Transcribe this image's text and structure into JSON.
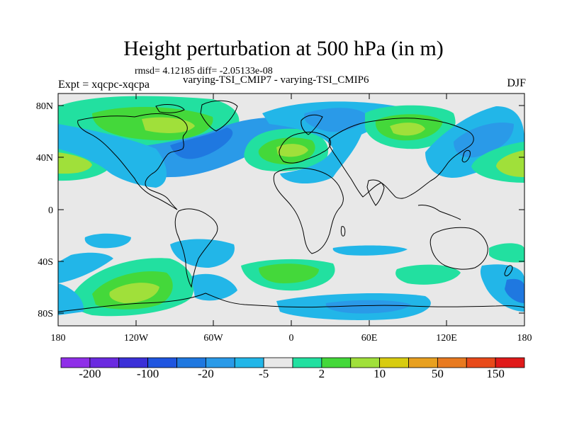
{
  "title": "Height perturbation at 500 hPa (in m)",
  "stats": "rmsd= 4.12185 diff= -2.05133e-08",
  "subtitle": "varying-TSI_CMIP7 - varying-TSI_CMIP6",
  "experiment": "Expt = xqcpc-xqcpa",
  "season": "DJF",
  "map": {
    "projection": "cylindrical equidistant",
    "lon_range": [
      -180,
      180
    ],
    "lat_range": [
      -90,
      90
    ],
    "lat_ticks": [
      "80N",
      "40N",
      "0",
      "40S",
      "80S"
    ],
    "lon_ticks": [
      "180",
      "120W",
      "60W",
      "0",
      "60E",
      "120E",
      "180"
    ]
  },
  "colorbar": {
    "colors": [
      "#8f2fe8",
      "#6a2ae0",
      "#3b30d8",
      "#1f55e0",
      "#1f78e0",
      "#2a9ae8",
      "#22b6e8",
      "#e8e8e8",
      "#22e0a0",
      "#44d83a",
      "#a0e03a",
      "#d8cc10",
      "#e8a020",
      "#e87a20",
      "#e84a1a",
      "#e01a1a"
    ],
    "labels": [
      "-200",
      "-100",
      "-20",
      "-5",
      "2",
      "10",
      "50",
      "150"
    ]
  }
}
